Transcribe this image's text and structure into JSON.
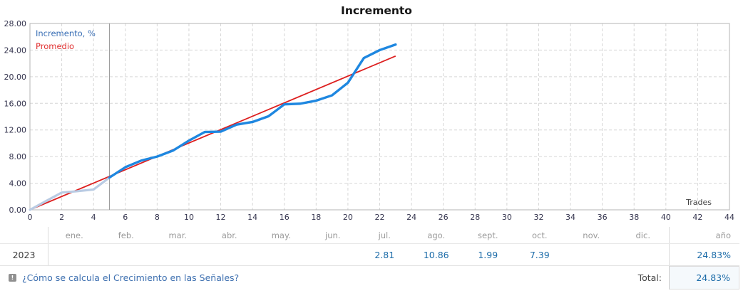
{
  "chart": {
    "title": "Incremento",
    "trades_label": "Trades",
    "legend": [
      {
        "label": "Incremento, %",
        "text_color": "#3a6fb5"
      },
      {
        "label": "Promedio",
        "text_color": "#e03030"
      }
    ]
  },
  "chart_data": {
    "type": "line",
    "title": "Incremento",
    "xlabel": "Trades",
    "ylabel": "Incremento, %",
    "xlim": [
      0,
      44
    ],
    "ylim": [
      0,
      28
    ],
    "x_tick_step": 2,
    "y_tick_step": 4,
    "grid": true,
    "legend_position": "top-left",
    "vertical_marker_x": 5,
    "series": [
      {
        "name": "Incremento, %",
        "color": "#1e87e0",
        "pale_color": "#b9cbe3",
        "pale_until_x": 5,
        "x": [
          0,
          1,
          2,
          3,
          4,
          5,
          6,
          7,
          8,
          9,
          10,
          11,
          12,
          13,
          14,
          15,
          16,
          17,
          18,
          19,
          20,
          21,
          22,
          23
        ],
        "values": [
          0,
          1.3,
          2.6,
          2.8,
          3.05,
          4.85,
          6.4,
          7.4,
          8.0,
          8.9,
          10.4,
          11.7,
          11.75,
          12.8,
          13.2,
          14.05,
          15.85,
          15.95,
          16.4,
          17.2,
          19.1,
          22.8,
          24.0,
          24.83
        ]
      },
      {
        "name": "Promedio",
        "color": "#dd1f1f",
        "x": [
          0,
          23
        ],
        "values": [
          0,
          23.1
        ]
      }
    ]
  },
  "table": {
    "months": [
      "ene.",
      "feb.",
      "mar.",
      "abr.",
      "may.",
      "jun.",
      "jul.",
      "ago.",
      "sept.",
      "oct.",
      "nov.",
      "dic."
    ],
    "year_col_label": "año",
    "rows": [
      {
        "year": "2023",
        "values": [
          "",
          "",
          "",
          "",
          "",
          "",
          "2.81",
          "10.86",
          "1.99",
          "7.39",
          "",
          ""
        ],
        "year_total": "24.83%"
      }
    ]
  },
  "footer": {
    "help_icon": "exclamation-square-icon",
    "link": "¿Cómo se calcula el Crecimiento en las Señales?",
    "total_label": "Total:",
    "total_value": "24.83%"
  },
  "colors": {
    "grid": "#d6d6d6",
    "plot_border": "#b5b5b5",
    "marker_line": "#9b9b9b",
    "axis_text": "#33334d",
    "trades_text": "#444444",
    "value_text": "#1b6ba8"
  }
}
